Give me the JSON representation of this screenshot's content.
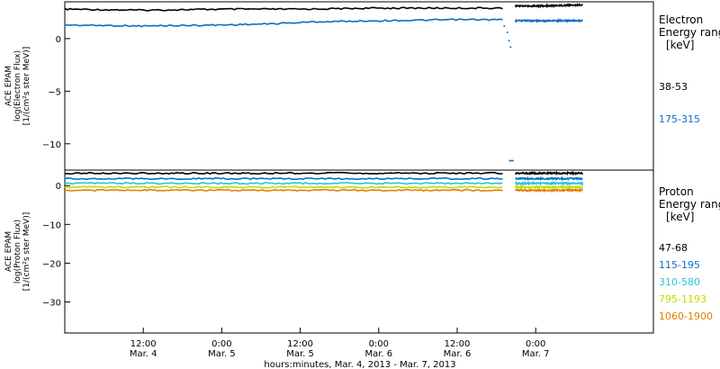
{
  "chart_data": [
    {
      "type": "line",
      "instrument": "ACE EPAM",
      "ylabel_line1": "ACE EPAM",
      "ylabel_line2": "log(Electron Flux)",
      "ylabel_line3": "[1/(cm²s ster MeV)]",
      "legend_title_1": "Electron",
      "legend_title_2": "Energy ranges",
      "legend_title_3": "[keV]",
      "ylim": [
        -12.5,
        3.5
      ],
      "yticks": [
        0,
        -5,
        -10
      ],
      "series": [
        {
          "name": "38-53",
          "color": "#000000",
          "x": [
            0,
            0.5,
            1,
            1.5,
            2,
            2.5,
            2.79,
            2.8,
            2.86,
            2.87,
            3.0,
            3.3
          ],
          "y": [
            2.8,
            2.7,
            2.8,
            2.8,
            2.9,
            2.9,
            2.9,
            null,
            null,
            3.1,
            3.1,
            3.2
          ]
        },
        {
          "name": "175-315",
          "color": "#0a6ec8",
          "x": [
            0,
            0.5,
            1,
            1.3,
            1.6,
            2.0,
            2.5,
            2.79,
            2.8,
            2.86,
            2.87,
            3.0,
            3.3
          ],
          "y": [
            1.3,
            1.2,
            1.3,
            1.4,
            1.6,
            1.7,
            1.8,
            1.8,
            null,
            null,
            1.7,
            1.7,
            1.7
          ]
        }
      ]
    },
    {
      "type": "line",
      "ylabel_line1": "ACE EPAM",
      "ylabel_line2": "log(Proton Flux)",
      "ylabel_line3": "[1/(cm²s ster MeV)]",
      "legend_title_1": "Proton",
      "legend_title_2": "Energy ranges",
      "legend_title_3": "[keV]",
      "ylim": [
        -38,
        4
      ],
      "yticks": [
        0,
        -10,
        -20,
        -30
      ],
      "series": [
        {
          "name": "47-68",
          "color": "#000000",
          "x": [
            0,
            3.3
          ],
          "y": [
            3.2,
            3.2
          ]
        },
        {
          "name": "115-195",
          "color": "#0a6ec8",
          "x": [
            0,
            3.3
          ],
          "y": [
            1.8,
            1.8
          ]
        },
        {
          "name": "310-580",
          "color": "#22c8d8",
          "x": [
            0,
            3.3
          ],
          "y": [
            0.6,
            0.6
          ]
        },
        {
          "name": "795-1193",
          "color": "#c8d800",
          "x": [
            0,
            3.3
          ],
          "y": [
            -0.4,
            -0.4
          ]
        },
        {
          "name": "1060-1900",
          "color": "#e08000",
          "x": [
            0,
            3.3
          ],
          "y": [
            -1.2,
            -1.2
          ]
        }
      ]
    }
  ],
  "x_axis": {
    "ticks": [
      {
        "time": "12:00",
        "day": "Mar. 4",
        "x": 0.5
      },
      {
        "time": "0:00",
        "day": "Mar. 5",
        "x": 1.0
      },
      {
        "time": "12:00",
        "day": "Mar. 5",
        "x": 1.5
      },
      {
        "time": "0:00",
        "day": "Mar. 6",
        "x": 2.0
      },
      {
        "time": "12:00",
        "day": "Mar. 6",
        "x": 2.5
      },
      {
        "time": "0:00",
        "day": "Mar. 7",
        "x": 3.0
      }
    ],
    "xlim": [
      0,
      3.75
    ],
    "label": "hours:minutes, Mar.  4, 2013 - Mar.  7, 2013"
  }
}
